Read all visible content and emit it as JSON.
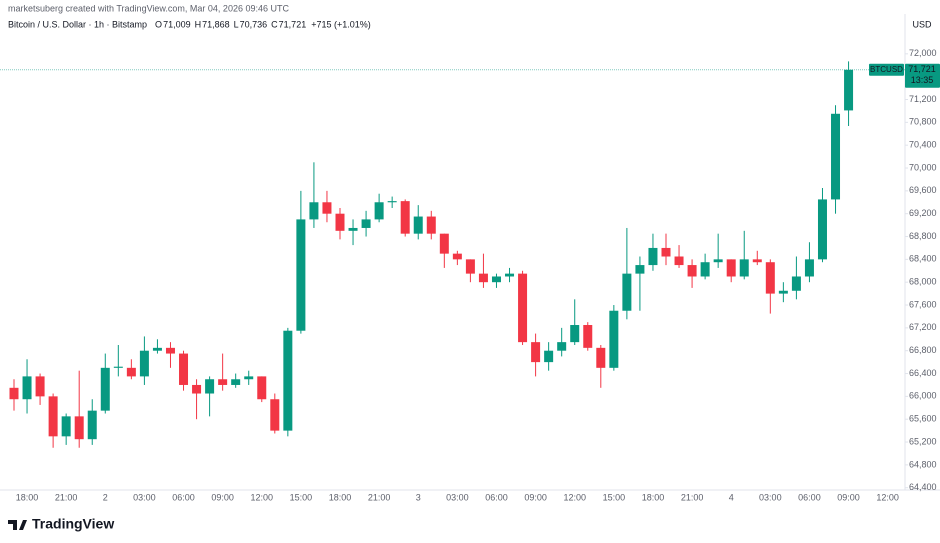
{
  "chart_data": {
    "type": "candlestick",
    "attribution": "marketsuberg created with TradingView.com, Mar 04, 2026 09:46 UTC",
    "symbol": "Bitcoin / U.S. Dollar · 1h · Bitstamp",
    "ohlc_legend": [
      {
        "label": "O",
        "value": "71,009"
      },
      {
        "label": "H",
        "value": "71,868"
      },
      {
        "label": "L",
        "value": "70,736"
      },
      {
        "label": "C",
        "value": "71,721"
      },
      {
        "label": "",
        "value": "+715 (+1.01%)"
      }
    ],
    "currency": "USD",
    "logo": "TradingView",
    "up_color": "#089981",
    "down_color": "#f23645",
    "categories": [
      null,
      "18:00",
      null,
      null,
      "21:00",
      null,
      null,
      "2",
      null,
      null,
      "03:00",
      null,
      null,
      "06:00",
      null,
      null,
      "09:00",
      null,
      null,
      "12:00",
      null,
      null,
      "15:00",
      null,
      null,
      "18:00",
      null,
      null,
      "21:00",
      null,
      null,
      "3",
      null,
      null,
      "03:00",
      null,
      null,
      "06:00",
      null,
      null,
      "09:00",
      null,
      null,
      "12:00",
      null,
      null,
      "15:00",
      null,
      null,
      "18:00",
      null,
      null,
      "21:00",
      null,
      null,
      "4",
      null,
      null,
      "03:00",
      null,
      null,
      "06:00",
      null,
      null,
      "09:00",
      null,
      null,
      "12:00"
    ],
    "open": [
      66150,
      65950,
      66350,
      66000,
      65300,
      65650,
      65250,
      65750,
      66500,
      66500,
      66350,
      66800,
      66850,
      66750,
      66200,
      66050,
      66300,
      66200,
      66300,
      66350,
      65950,
      65400,
      67150,
      69100,
      69400,
      69200,
      68900,
      68950,
      69100,
      69400,
      69420,
      68850,
      69150,
      68850,
      68500,
      68400,
      68150,
      68000,
      68100,
      68150,
      66950,
      66600,
      66800,
      66950,
      67250,
      66850,
      66500,
      67500,
      68150,
      68300,
      68600,
      68450,
      68300,
      68100,
      68350,
      68400,
      68100,
      68400,
      68350,
      67800,
      67850,
      68100,
      68400,
      69450,
      71009,
      null,
      null,
      null
    ],
    "high": [
      66300,
      66650,
      66400,
      66050,
      65700,
      66450,
      65950,
      66750,
      66900,
      66650,
      67050,
      67000,
      66950,
      66800,
      66300,
      66350,
      66750,
      66400,
      66450,
      66350,
      66050,
      67200,
      69600,
      70100,
      69600,
      69300,
      69100,
      69250,
      69550,
      69500,
      69450,
      69350,
      69250,
      68850,
      68550,
      68400,
      68500,
      68150,
      68250,
      68200,
      67100,
      66950,
      67200,
      67700,
      67300,
      66900,
      67600,
      68950,
      68450,
      68850,
      68850,
      68650,
      68400,
      68500,
      68850,
      68400,
      68900,
      68550,
      68400,
      68000,
      68450,
      68700,
      69650,
      71100,
      71868,
      null,
      null,
      null
    ],
    "low": [
      65750,
      65700,
      65850,
      65100,
      65150,
      65100,
      65150,
      65700,
      66350,
      66300,
      66200,
      66750,
      66500,
      66100,
      65600,
      65650,
      66100,
      66150,
      66200,
      65900,
      65350,
      65300,
      67100,
      68950,
      69050,
      68750,
      68650,
      68800,
      69050,
      69300,
      68800,
      68750,
      68750,
      68250,
      68300,
      68000,
      67900,
      67900,
      68000,
      66900,
      66350,
      66450,
      66700,
      66900,
      66800,
      66150,
      66450,
      67350,
      67500,
      68200,
      68300,
      68250,
      67900,
      68050,
      68250,
      68000,
      68050,
      68300,
      67450,
      67650,
      67700,
      68000,
      68350,
      69200,
      70736,
      null,
      null,
      null
    ],
    "close": [
      65950,
      66350,
      66000,
      65300,
      65650,
      65250,
      65750,
      66500,
      66520,
      66350,
      66800,
      66850,
      66750,
      66200,
      66050,
      66300,
      66200,
      66300,
      66350,
      65950,
      65400,
      67150,
      69100,
      69400,
      69200,
      68900,
      68950,
      69100,
      69400,
      69420,
      68850,
      69150,
      68850,
      68500,
      68400,
      68150,
      68000,
      68100,
      68150,
      66950,
      66600,
      66800,
      66950,
      67250,
      66850,
      66500,
      67500,
      68150,
      68300,
      68600,
      68450,
      68300,
      68100,
      68350,
      68400,
      68100,
      68400,
      68350,
      67800,
      67850,
      68100,
      68400,
      69450,
      70950,
      71721,
      null,
      null,
      null
    ],
    "ylim": [
      64360,
      72330
    ],
    "yticks": [
      {
        "value": 64400,
        "label": "64,400"
      },
      {
        "value": 64800,
        "label": "64,800"
      },
      {
        "value": 65200,
        "label": "65,200"
      },
      {
        "value": 65600,
        "label": "65,600"
      },
      {
        "value": 66000,
        "label": "66,000"
      },
      {
        "value": 66400,
        "label": "66,400"
      },
      {
        "value": 66800,
        "label": "66,800"
      },
      {
        "value": 67200,
        "label": "67,200"
      },
      {
        "value": 67600,
        "label": "67,600"
      },
      {
        "value": 68000,
        "label": "68,000"
      },
      {
        "value": 68400,
        "label": "68,400"
      },
      {
        "value": 68800,
        "label": "68,800"
      },
      {
        "value": 69200,
        "label": "69,200"
      },
      {
        "value": 69600,
        "label": "69,600"
      },
      {
        "value": 70000,
        "label": "70,000"
      },
      {
        "value": 70400,
        "label": "70,400"
      },
      {
        "value": 70800,
        "label": "70,800"
      },
      {
        "value": 71200,
        "label": "71,200"
      },
      {
        "value": 72000,
        "label": "72,000"
      }
    ],
    "grid": false,
    "last_price": {
      "symbol": "BTCUSD",
      "value": 71721,
      "label": "71,721",
      "countdown": "13:35"
    }
  }
}
